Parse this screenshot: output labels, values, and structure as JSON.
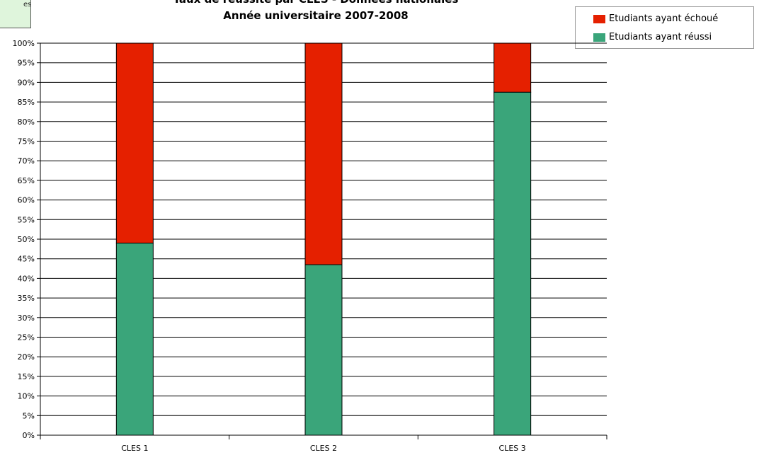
{
  "chart_data": {
    "type": "bar",
    "stacked": true,
    "title_top": "Taux de réussite par CLES - Données nationales",
    "title": "Année universitaire 2007-2008",
    "categories": [
      "CLES 1",
      "CLES 2",
      "CLES 3"
    ],
    "series": [
      {
        "name": "Etudiants ayant réussi",
        "color": "#3aa57a",
        "values": [
          49,
          43.5,
          87.5
        ]
      },
      {
        "name": "Etudiants ayant échoué",
        "color": "#e52000",
        "values": [
          51,
          56.5,
          12.5
        ]
      }
    ],
    "ylim": [
      0,
      100
    ],
    "yticks": [
      "0%",
      "5%",
      "10%",
      "15%",
      "20%",
      "25%",
      "30%",
      "35%",
      "40%",
      "45%",
      "50%",
      "55%",
      "60%",
      "65%",
      "70%",
      "75%",
      "80%",
      "85%",
      "90%",
      "95%",
      "100%"
    ],
    "grid": true,
    "legend_position": "top-right"
  },
  "legend": [
    {
      "label": "Etudiants ayant échoué",
      "color": "#e52000"
    },
    {
      "label": "Etudiants ayant réussi",
      "color": "#3aa57a"
    }
  ],
  "corner_box": {
    "text": "es"
  }
}
